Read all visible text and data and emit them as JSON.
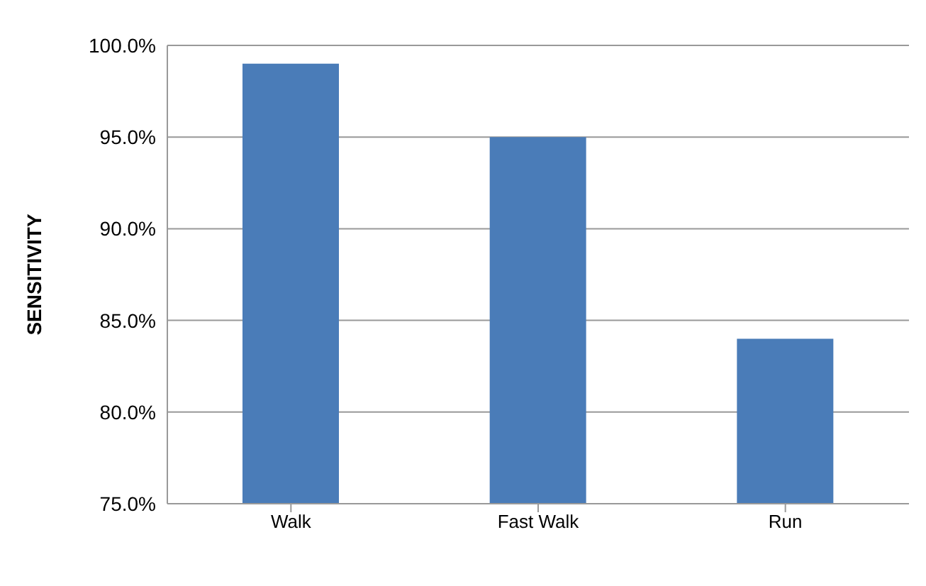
{
  "chart_data": {
    "type": "bar",
    "ylabel": "SENSITIVITY",
    "categories": [
      "Walk",
      "Fast Walk",
      "Run"
    ],
    "values": [
      99.0,
      95.0,
      84.0
    ],
    "color": "#4a7cb8",
    "ylim": [
      75,
      100
    ],
    "yticks": [
      {
        "value": 75,
        "label": "75.0%"
      },
      {
        "value": 80,
        "label": "80.0%"
      },
      {
        "value": 85,
        "label": "85.0%"
      },
      {
        "value": 90,
        "label": "90.0%"
      },
      {
        "value": 95,
        "label": "95.0%"
      },
      {
        "value": 100,
        "label": "100.0%"
      }
    ],
    "grid": "y",
    "legend": false
  }
}
